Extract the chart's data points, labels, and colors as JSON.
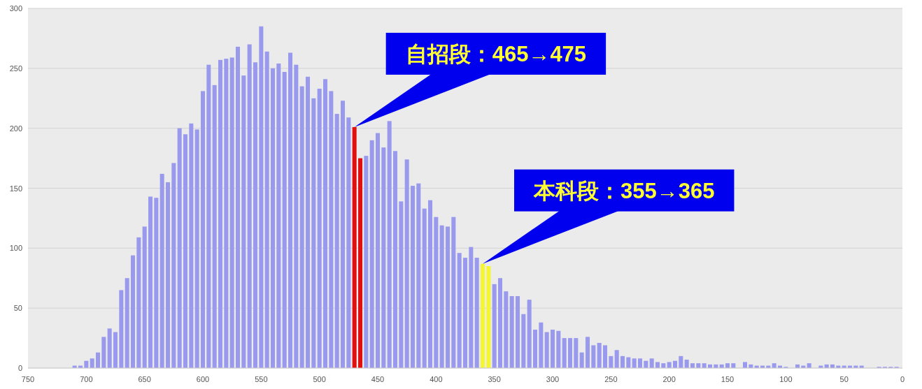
{
  "chart_data": {
    "type": "bar",
    "x": [
      710,
      705,
      700,
      695,
      690,
      685,
      680,
      675,
      670,
      665,
      660,
      655,
      650,
      645,
      640,
      635,
      630,
      625,
      620,
      615,
      610,
      605,
      600,
      595,
      590,
      585,
      580,
      575,
      570,
      565,
      560,
      555,
      550,
      545,
      540,
      535,
      530,
      525,
      520,
      515,
      510,
      505,
      500,
      495,
      490,
      485,
      480,
      475,
      470,
      465,
      460,
      455,
      450,
      445,
      440,
      435,
      430,
      425,
      420,
      415,
      410,
      405,
      400,
      395,
      390,
      385,
      380,
      375,
      370,
      365,
      360,
      355,
      350,
      345,
      340,
      335,
      330,
      325,
      320,
      315,
      310,
      305,
      300,
      295,
      290,
      285,
      280,
      275,
      270,
      265,
      260,
      255,
      250,
      245,
      240,
      235,
      230,
      225,
      220,
      215,
      210,
      205,
      200,
      195,
      190,
      185,
      180,
      175,
      170,
      165,
      160,
      155,
      150,
      145,
      135,
      130,
      125,
      120,
      115,
      110,
      105,
      100,
      90,
      85,
      80,
      70,
      65,
      60,
      55,
      50,
      45,
      40,
      35,
      20,
      15,
      10,
      5
    ],
    "values": [
      2,
      2,
      6,
      8,
      13,
      26,
      33,
      30,
      65,
      75,
      94,
      109,
      118,
      143,
      142,
      162,
      155,
      171,
      200,
      195,
      204,
      199,
      231,
      253,
      236,
      257,
      258,
      259,
      268,
      244,
      270,
      255,
      285,
      264,
      250,
      254,
      247,
      263,
      253,
      235,
      243,
      225,
      233,
      241,
      231,
      212,
      223,
      209,
      201,
      175,
      177,
      190,
      196,
      184,
      206,
      181,
      139,
      174,
      152,
      154,
      133,
      140,
      126,
      119,
      118,
      126,
      96,
      92,
      101,
      92,
      87,
      85,
      70,
      75,
      64,
      60,
      60,
      45,
      57,
      32,
      38,
      30,
      32,
      31,
      25,
      25,
      25,
      13,
      26,
      19,
      21,
      19,
      10,
      15,
      10,
      9,
      8,
      8,
      6,
      8,
      5,
      4,
      5,
      6,
      10,
      7,
      4,
      4,
      4,
      3,
      3,
      3,
      4,
      4,
      5,
      3,
      2,
      2,
      2,
      4,
      2,
      1,
      3,
      2,
      4,
      2,
      3,
      3,
      2,
      2,
      2,
      2,
      2,
      1,
      1,
      1,
      1
    ],
    "colors": [
      "#9999ee",
      "#9999ee",
      "#9999ee",
      "#9999ee",
      "#9999ee",
      "#9999ee",
      "#9999ee",
      "#9999ee",
      "#9999ee",
      "#9999ee",
      "#9999ee",
      "#9999ee",
      "#9999ee",
      "#9999ee",
      "#9999ee",
      "#9999ee",
      "#9999ee",
      "#9999ee",
      "#9999ee",
      "#9999ee",
      "#9999ee",
      "#9999ee",
      "#9999ee",
      "#9999ee",
      "#9999ee",
      "#9999ee",
      "#9999ee",
      "#9999ee",
      "#9999ee",
      "#9999ee",
      "#9999ee",
      "#9999ee",
      "#9999ee",
      "#9999ee",
      "#9999ee",
      "#9999ee",
      "#9999ee",
      "#9999ee",
      "#9999ee",
      "#9999ee",
      "#9999ee",
      "#9999ee",
      "#9999ee",
      "#9999ee",
      "#9999ee",
      "#9999ee",
      "#9999ee",
      "#9999ee",
      "#e01010",
      "#e01010",
      "#9999ee",
      "#9999ee",
      "#9999ee",
      "#9999ee",
      "#9999ee",
      "#9999ee",
      "#9999ee",
      "#9999ee",
      "#9999ee",
      "#9999ee",
      "#9999ee",
      "#9999ee",
      "#9999ee",
      "#9999ee",
      "#9999ee",
      "#9999ee",
      "#9999ee",
      "#9999ee",
      "#9999ee",
      "#9999ee",
      "#f5f530",
      "#f5f530",
      "#9999ee",
      "#9999ee",
      "#9999ee",
      "#9999ee",
      "#9999ee",
      "#9999ee",
      "#9999ee",
      "#9999ee",
      "#9999ee",
      "#9999ee",
      "#9999ee",
      "#9999ee",
      "#9999ee",
      "#9999ee",
      "#9999ee",
      "#9999ee",
      "#9999ee",
      "#9999ee",
      "#9999ee",
      "#9999ee",
      "#9999ee",
      "#9999ee",
      "#9999ee",
      "#9999ee",
      "#9999ee",
      "#9999ee",
      "#9999ee",
      "#9999ee",
      "#9999ee",
      "#9999ee",
      "#9999ee",
      "#9999ee",
      "#9999ee",
      "#9999ee",
      "#9999ee",
      "#9999ee",
      "#9999ee",
      "#9999ee",
      "#9999ee",
      "#9999ee",
      "#9999ee",
      "#9999ee",
      "#9999ee",
      "#9999ee",
      "#9999ee",
      "#9999ee",
      "#9999ee",
      "#9999ee",
      "#9999ee",
      "#9999ee",
      "#9999ee",
      "#9999ee",
      "#9999ee",
      "#9999ee",
      "#9999ee",
      "#9999ee",
      "#9999ee",
      "#9999ee",
      "#9999ee",
      "#9999ee",
      "#9999ee",
      "#9999ee",
      "#9999ee",
      "#9999ee",
      "#9999ee"
    ],
    "xlim": [
      750,
      0
    ],
    "xticks": [
      750,
      700,
      650,
      600,
      550,
      500,
      450,
      400,
      350,
      300,
      250,
      200,
      150,
      100,
      50,
      0
    ],
    "ylim": [
      0,
      300
    ],
    "yticks": [
      0,
      50,
      100,
      150,
      200,
      250,
      300
    ],
    "grid": "y",
    "annotations": [
      {
        "text": "自招段：465→475",
        "x": 470,
        "y": 201
      },
      {
        "text": "本科段：355→365",
        "x": 360,
        "y": 87
      }
    ]
  }
}
